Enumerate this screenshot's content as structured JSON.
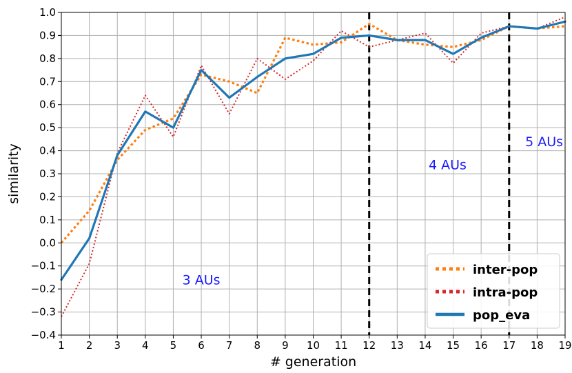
{
  "chart_data": {
    "type": "line",
    "xlabel": "# generation",
    "ylabel": "similarity",
    "xlim": [
      1,
      19
    ],
    "ylim": [
      -0.4,
      1.0
    ],
    "x_ticks": [
      1,
      2,
      3,
      4,
      5,
      6,
      7,
      8,
      9,
      10,
      11,
      12,
      13,
      14,
      15,
      16,
      17,
      18,
      19
    ],
    "y_ticks": [
      "−0.4",
      "−0.3",
      "−0.2",
      "−0.1",
      "0.0",
      "0.1",
      "0.2",
      "0.3",
      "0.4",
      "0.5",
      "0.6",
      "0.7",
      "0.8",
      "0.9",
      "1.0"
    ],
    "grid": true,
    "legend_position": "bottom-right",
    "x": [
      1,
      2,
      3,
      4,
      5,
      6,
      7,
      8,
      9,
      10,
      11,
      12,
      13,
      14,
      15,
      16,
      17,
      18,
      19
    ],
    "series": [
      {
        "name": "inter-pop",
        "style": "dotted",
        "color": "#ff7f0e",
        "values": [
          0.0,
          0.14,
          0.36,
          0.49,
          0.54,
          0.73,
          0.7,
          0.65,
          0.89,
          0.86,
          0.87,
          0.95,
          0.88,
          0.86,
          0.85,
          0.88,
          0.94,
          0.93,
          0.94
        ]
      },
      {
        "name": "intra-pop",
        "style": "dotted",
        "color": "#d62728",
        "values": [
          -0.32,
          -0.09,
          0.39,
          0.64,
          0.46,
          0.77,
          0.56,
          0.8,
          0.71,
          0.79,
          0.92,
          0.85,
          0.88,
          0.91,
          0.78,
          0.91,
          0.94,
          0.93,
          0.98
        ]
      },
      {
        "name": "pop_eva",
        "style": "solid",
        "color": "#1f77b4",
        "values": [
          -0.16,
          0.02,
          0.38,
          0.57,
          0.5,
          0.75,
          0.63,
          0.72,
          0.8,
          0.82,
          0.89,
          0.9,
          0.88,
          0.88,
          0.82,
          0.89,
          0.94,
          0.93,
          0.96
        ]
      }
    ],
    "vlines": [
      {
        "x": 12,
        "style": "dashed",
        "color": "#000000"
      },
      {
        "x": 17,
        "style": "dashed",
        "color": "#000000"
      }
    ],
    "annotations": [
      {
        "text": "3 AUs",
        "x": 6.0,
        "y": -0.18,
        "color": "#1a1aff"
      },
      {
        "text": "4 AUs",
        "x": 14.8,
        "y": 0.32,
        "color": "#1a1aff"
      },
      {
        "text": "5 AUs",
        "x": 18.25,
        "y": 0.42,
        "color": "#1a1aff"
      }
    ]
  }
}
